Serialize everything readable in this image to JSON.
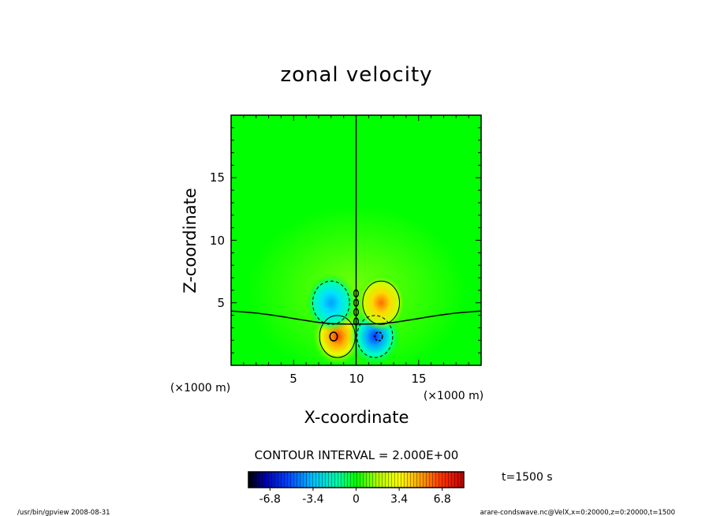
{
  "chart_data": {
    "type": "heatmap",
    "title": "zonal velocity",
    "xlabel": "X-coordinate",
    "ylabel": "Z-coordinate",
    "x_unit": "(×1000 m)",
    "z_unit": "(×1000 m)",
    "xlim": [
      0,
      20
    ],
    "ylim": [
      0,
      20
    ],
    "x_ticks": [
      "5",
      "10",
      "15"
    ],
    "y_ticks": [
      "5",
      "10",
      "15"
    ],
    "contour_interval_label": "CONTOUR INTERVAL = 2.000E+00",
    "time_label": "t=1500 s",
    "colorbar": {
      "range": [
        -8.5,
        8.5
      ],
      "ticks": [
        "-6.8",
        "-3.4",
        "0",
        "3.4",
        "6.8"
      ]
    },
    "features": [
      {
        "kind": "positive",
        "x": 8.5,
        "z": 2.3,
        "peak": 7.0
      },
      {
        "kind": "negative",
        "x": 11.5,
        "z": 2.3,
        "peak": -7.0
      },
      {
        "kind": "negative",
        "x": 8.0,
        "z": 5.0,
        "peak": -4.5
      },
      {
        "kind": "positive",
        "x": 12.0,
        "z": 5.0,
        "peak": 4.5
      }
    ]
  },
  "footer": {
    "left": "/usr/bin/gpview   2008-08-31",
    "right": "arare-condswave.nc@VelX,x=0:20000,z=0:20000,t=1500"
  }
}
